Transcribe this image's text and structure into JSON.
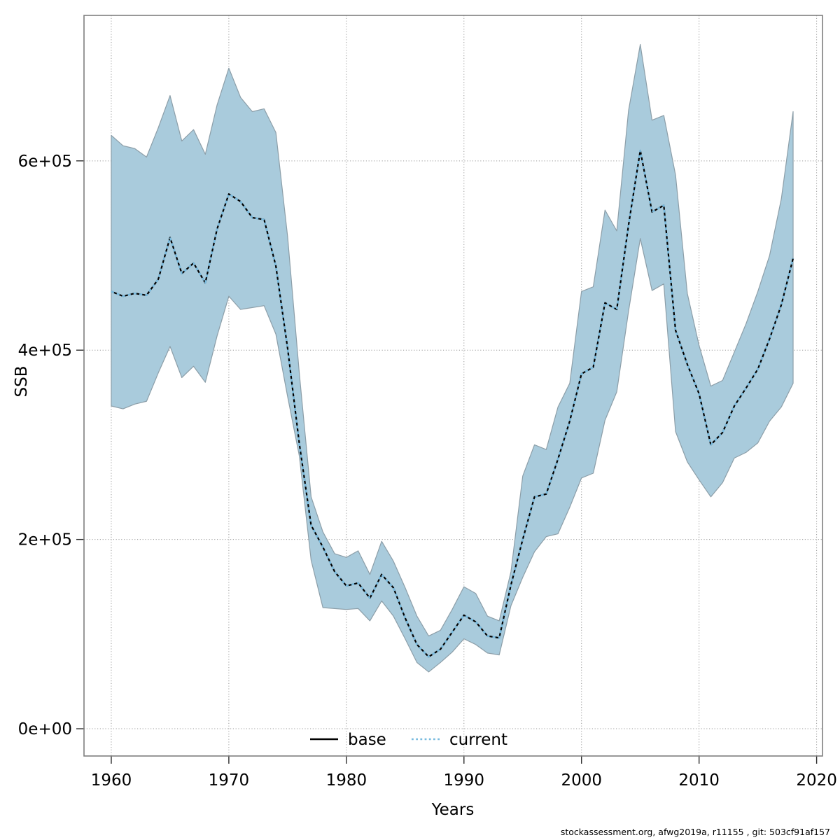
{
  "chart_data": {
    "type": "line-with-confidence-band",
    "title": "",
    "xlabel": "Years",
    "ylabel": "SSB",
    "footer": "stockassessment.org, afwg2019a, r11155 , git: 503cf91af157",
    "xlim": [
      1957.68,
      2020.5
    ],
    "ylim": [
      -28800,
      753700
    ],
    "x_ticks": [
      1960,
      1970,
      1980,
      1990,
      2000,
      2010,
      2020
    ],
    "y_tick_values": [
      0,
      200000,
      400000,
      600000
    ],
    "y_tick_labels": [
      "0e+00",
      "2e+05",
      "4e+05",
      "6e+05"
    ],
    "grid": true,
    "grid_color": "#9a9a9a",
    "border_color": "#7f7f7f",
    "band_color": "#A9CBDC",
    "band_edge_color": "#8C9EA8",
    "base_color": "#000000",
    "current_color": "#79BBDF",
    "legend": [
      {
        "label": "base",
        "style": "solid",
        "color": "#000000"
      },
      {
        "label": "current",
        "style": "dotted",
        "color": "#79BBDF"
      }
    ],
    "years": [
      1960,
      1961,
      1962,
      1963,
      1964,
      1965,
      1966,
      1967,
      1968,
      1969,
      1970,
      1971,
      1972,
      1973,
      1974,
      1975,
      1976,
      1977,
      1978,
      1979,
      1980,
      1981,
      1982,
      1983,
      1984,
      1985,
      1986,
      1987,
      1988,
      1989,
      1990,
      1991,
      1992,
      1993,
      1994,
      1995,
      1996,
      1997,
      1998,
      1999,
      2000,
      2001,
      2002,
      2003,
      2004,
      2005,
      2006,
      2007,
      2008,
      2009,
      2010,
      2011,
      2012,
      2013,
      2014,
      2015,
      2016,
      2017,
      2018
    ],
    "series": [
      {
        "name": "base",
        "values": [
          462000,
          457000,
          460000,
          458000,
          475000,
          519000,
          481000,
          492000,
          471000,
          528000,
          565000,
          557000,
          540000,
          538000,
          489000,
          402000,
          301000,
          215000,
          192000,
          166000,
          151000,
          154000,
          138000,
          163000,
          149000,
          117000,
          89000,
          76000,
          84000,
          102000,
          120000,
          113000,
          98000,
          96000,
          152000,
          200000,
          245000,
          248000,
          285000,
          325000,
          375000,
          382000,
          450000,
          443000,
          532000,
          611000,
          546000,
          553000,
          421000,
          385000,
          354000,
          300000,
          313000,
          341000,
          360000,
          380000,
          412000,
          448000,
          497000
        ]
      },
      {
        "name": "current",
        "values": [
          462000,
          457000,
          460000,
          458000,
          475000,
          519000,
          481000,
          492000,
          471000,
          528000,
          565000,
          557000,
          540000,
          538000,
          489000,
          402000,
          301000,
          215000,
          192000,
          166000,
          151000,
          154000,
          138000,
          163000,
          149000,
          117000,
          89000,
          76000,
          84000,
          102000,
          120000,
          113000,
          98000,
          96000,
          152000,
          200000,
          245000,
          248000,
          285000,
          325000,
          375000,
          382000,
          450000,
          443000,
          532000,
          611000,
          546000,
          553000,
          421000,
          385000,
          354000,
          300000,
          313000,
          341000,
          360000,
          380000,
          412000,
          448000,
          497000
        ]
      }
    ],
    "band": {
      "hi": [
        627000,
        616000,
        613000,
        604000,
        635000,
        669000,
        621000,
        633000,
        607000,
        659000,
        698000,
        667000,
        652000,
        655000,
        630000,
        520000,
        375000,
        245000,
        208000,
        185000,
        181000,
        188000,
        163000,
        198000,
        177000,
        149000,
        119000,
        98000,
        104000,
        126000,
        150000,
        143000,
        119000,
        114000,
        166000,
        267000,
        300000,
        295000,
        340000,
        365000,
        462000,
        467000,
        548000,
        526000,
        653000,
        723000,
        643000,
        648000,
        585000,
        460000,
        405000,
        362000,
        368000,
        398000,
        428000,
        462000,
        500000,
        560000,
        652000
      ],
      "lo": [
        341000,
        338000,
        343000,
        346000,
        376000,
        404000,
        371000,
        383000,
        366000,
        415000,
        457000,
        443000,
        445000,
        447000,
        417000,
        351000,
        288000,
        178000,
        128000,
        127000,
        126000,
        127000,
        114000,
        135000,
        119000,
        95000,
        70000,
        60000,
        70000,
        81000,
        95000,
        89000,
        80000,
        78000,
        130000,
        160000,
        187000,
        203000,
        206000,
        234000,
        265000,
        270000,
        326000,
        356000,
        441000,
        518000,
        463000,
        470000,
        314000,
        282000,
        263000,
        245000,
        260000,
        286000,
        292000,
        302000,
        325000,
        340000,
        365000
      ]
    }
  }
}
